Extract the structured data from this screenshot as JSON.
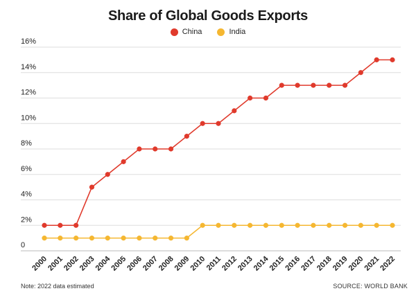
{
  "chart_data": {
    "type": "line",
    "title": "Share of Global Goods Exports",
    "x": [
      "2000",
      "2001",
      "2002",
      "2003",
      "2004",
      "2005",
      "2006",
      "2007",
      "2008",
      "2009",
      "2010",
      "2011",
      "2012",
      "2013",
      "2014",
      "2015",
      "2016",
      "2017",
      "2018",
      "2019",
      "2020",
      "2021",
      "2022"
    ],
    "series": [
      {
        "name": "China",
        "color": "#e03a2c",
        "values": [
          2,
          2,
          2,
          5,
          6,
          7,
          8,
          8,
          8,
          9,
          10,
          10,
          11,
          12,
          12,
          13,
          13,
          13,
          13,
          13,
          14,
          15,
          15
        ]
      },
      {
        "name": "India",
        "color": "#f5b731",
        "values": [
          1,
          1,
          1,
          1,
          1,
          1,
          1,
          1,
          1,
          1,
          2,
          2,
          2,
          2,
          2,
          2,
          2,
          2,
          2,
          2,
          2,
          2,
          2
        ]
      }
    ],
    "ylim": [
      0,
      16
    ],
    "yticks": [
      {
        "value": 0,
        "label": "0"
      },
      {
        "value": 2,
        "label": "2%"
      },
      {
        "value": 4,
        "label": "4%"
      },
      {
        "value": 6,
        "label": "6%"
      },
      {
        "value": 8,
        "label": "8%"
      },
      {
        "value": 10,
        "label": "10%"
      },
      {
        "value": 12,
        "label": "12%"
      },
      {
        "value": 14,
        "label": "14%"
      },
      {
        "value": 16,
        "label": "16%"
      }
    ],
    "grid": true,
    "legend": "top-center"
  },
  "footnote": "Note: 2022 data estimated",
  "source": "SOURCE: WORLD BANK"
}
